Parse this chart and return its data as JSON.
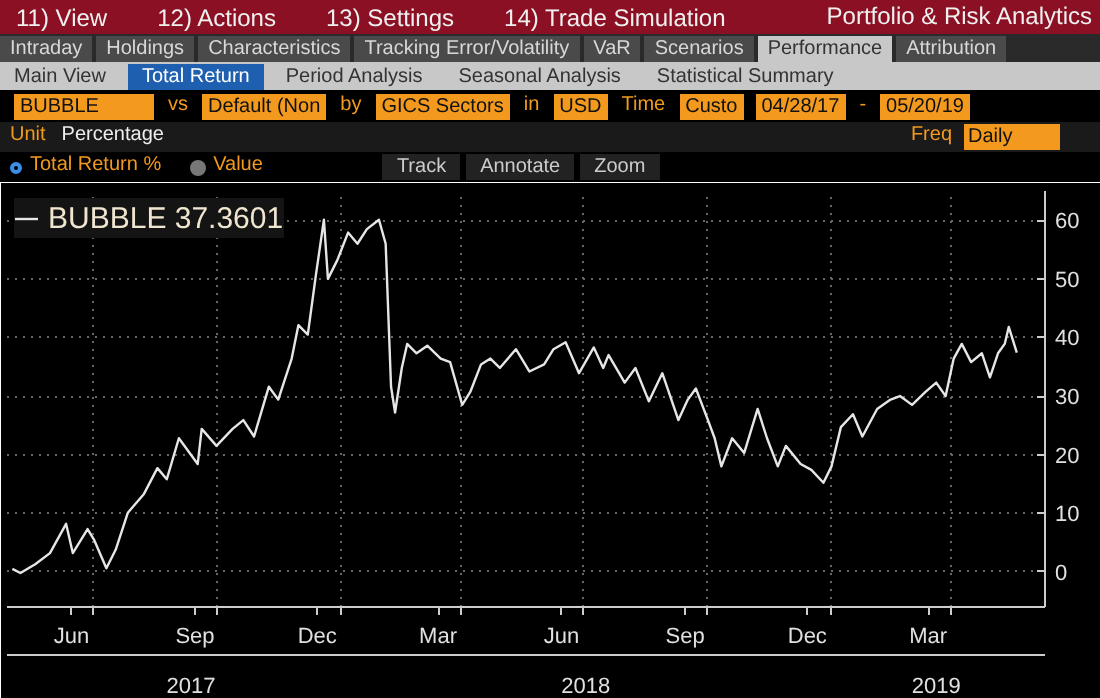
{
  "chart_data": {
    "type": "line",
    "title": "Portfolio & Risk Analytics",
    "annotations": [
      "11) View",
      "12) Actions",
      "13) Settings",
      "14) Trade Simulation",
      "Intraday",
      "Holdings",
      "Characteristics",
      "Tracking Error/Volatility",
      "VaR",
      "Scenarios",
      "Performance",
      "Attribution",
      "Main View",
      "Total Return",
      "Period Analysis",
      "Seasonal Analysis",
      "Statistical Summary",
      "BUBBLE",
      "vs",
      "Default (Non",
      "by",
      "GICS Sectors",
      "in",
      "USD",
      "Time",
      "Custo",
      "04/28/17",
      "-",
      "05/20/19",
      "Unit",
      "Percentage",
      "Freq",
      "Daily",
      "Total Return %",
      "Value",
      "Track",
      "Annotate",
      "Zoom",
      "37.3601"
    ],
    "series": [
      {
        "name": "BUBBLE",
        "color": "#e6e6e6",
        "x": [
          "2017-05-02",
          "2017-05-08",
          "2017-05-19",
          "2017-05-30",
          "2017-06-11",
          "2017-06-16",
          "2017-06-27",
          "2017-07-02",
          "2017-07-11",
          "2017-07-18",
          "2017-07-27",
          "2017-08-08",
          "2017-08-18",
          "2017-08-25",
          "2017-09-03",
          "2017-09-17",
          "2017-09-20",
          "2017-10-01",
          "2017-10-13",
          "2017-10-21",
          "2017-10-29",
          "2017-11-09",
          "2017-11-16",
          "2017-11-26",
          "2017-12-01",
          "2017-12-08",
          "2017-12-14",
          "2017-12-20",
          "2017-12-23",
          "2017-12-30",
          "2018-01-07",
          "2018-01-14",
          "2018-01-21",
          "2018-01-30",
          "2018-02-04",
          "2018-02-08",
          "2018-02-11",
          "2018-02-16",
          "2018-02-20",
          "2018-02-27",
          "2018-03-07",
          "2018-03-17",
          "2018-03-24",
          "2018-04-02",
          "2018-04-08",
          "2018-04-16",
          "2018-04-23",
          "2018-04-30",
          "2018-05-12",
          "2018-05-22",
          "2018-06-02",
          "2018-06-09",
          "2018-06-18",
          "2018-06-28",
          "2018-07-09",
          "2018-07-16",
          "2018-07-20",
          "2018-08-01",
          "2018-08-09",
          "2018-08-19",
          "2018-08-29",
          "2018-09-10",
          "2018-09-17",
          "2018-09-23",
          "2018-10-02",
          "2018-10-07",
          "2018-10-12",
          "2018-10-20",
          "2018-10-29",
          "2018-11-08",
          "2018-11-15",
          "2018-11-23",
          "2018-11-29",
          "2018-12-10",
          "2018-12-18",
          "2018-12-27",
          "2019-01-02",
          "2019-01-09",
          "2019-01-18",
          "2019-01-25",
          "2019-02-05",
          "2019-02-15",
          "2019-02-22",
          "2019-03-03",
          "2019-03-13",
          "2019-03-21",
          "2019-03-28",
          "2019-04-03",
          "2019-04-09",
          "2019-04-16",
          "2019-04-24",
          "2019-04-30",
          "2019-05-06",
          "2019-05-11",
          "2019-05-14",
          "2019-05-20"
        ],
        "values": [
          0.5,
          -0.2,
          1.3,
          3.2,
          8.2,
          3.2,
          7.3,
          5.4,
          0.6,
          3.8,
          10.1,
          13.3,
          17.7,
          15.8,
          22.8,
          18.4,
          24.4,
          21.5,
          24.4,
          25.9,
          23.1,
          31.6,
          29.4,
          36.4,
          42.1,
          40.5,
          50.6,
          60.1,
          50.0,
          53.2,
          57.9,
          56.0,
          58.5,
          60.1,
          56.0,
          31.6,
          27.2,
          34.8,
          38.9,
          37.3,
          38.6,
          36.4,
          35.8,
          28.5,
          30.7,
          35.4,
          36.4,
          34.8,
          38.0,
          34.2,
          35.4,
          38.0,
          39.2,
          33.9,
          38.3,
          34.8,
          37.0,
          32.3,
          34.8,
          29.1,
          33.9,
          25.9,
          29.4,
          31.3,
          25.9,
          22.8,
          18.0,
          22.8,
          20.3,
          27.8,
          22.8,
          18.0,
          21.5,
          18.4,
          17.4,
          15.2,
          18.0,
          24.7,
          26.9,
          23.1,
          27.8,
          29.4,
          30.0,
          28.5,
          30.7,
          32.3,
          30.0,
          36.4,
          38.9,
          35.8,
          37.3,
          33.2,
          37.3,
          38.9,
          41.8,
          37.4
        ]
      }
    ],
    "xlim": [
      "2017-04-28",
      "2019-06-10"
    ],
    "xticks": [
      {
        "value": "2017-06-15",
        "label": "Jun"
      },
      {
        "value": "2017-09-15",
        "label": "Sep"
      },
      {
        "value": "2017-12-15",
        "label": "Dec"
      },
      {
        "value": "2018-03-15",
        "label": "Mar"
      },
      {
        "value": "2018-06-15",
        "label": "Jun"
      },
      {
        "value": "2018-09-15",
        "label": "Sep"
      },
      {
        "value": "2018-12-15",
        "label": "Dec"
      },
      {
        "value": "2019-03-15",
        "label": "Mar"
      },
      {
        "value": "2017-07-01",
        "label": null
      },
      {
        "value": "2017-10-01",
        "label": null
      },
      {
        "value": "2018-01-01",
        "label": null
      },
      {
        "value": "2018-04-01",
        "label": null
      },
      {
        "value": "2018-07-01",
        "label": null
      },
      {
        "value": "2018-10-01",
        "label": null
      },
      {
        "value": "2019-01-01",
        "label": null
      },
      {
        "value": "2019-04-01",
        "label": null
      }
    ],
    "x2lim": [
      "2017-04-28",
      "2019-06-10"
    ],
    "x2ticks": [
      {
        "value": "2017-09-12",
        "label": "2017"
      },
      {
        "value": "2018-07-03",
        "label": "2018"
      },
      {
        "value": "2019-03-21",
        "label": "2019"
      }
    ],
    "ylim": [
      -6,
      65
    ],
    "yticks": [
      0,
      10,
      20,
      30,
      40,
      50,
      60
    ],
    "grid": true,
    "legend": "top left"
  }
}
